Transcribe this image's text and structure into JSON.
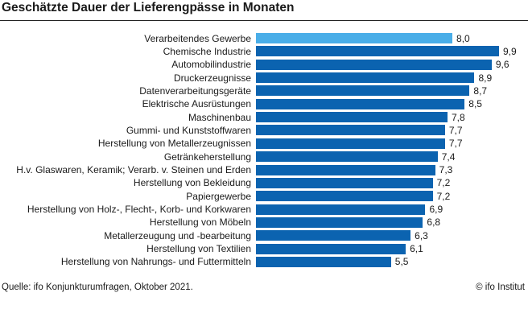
{
  "chart_data": {
    "type": "bar",
    "orientation": "horizontal",
    "title": "Geschätzte Dauer der Lieferengpässe in Monaten",
    "categories": [
      "Verarbeitendes Gewerbe",
      "Chemische Industrie",
      "Automobilindustrie",
      "Druckerzeugnisse",
      "Datenverarbeitungsgeräte",
      "Elektrische Ausrüstungen",
      "Maschinenbau",
      "Gummi- und Kunststoffwaren",
      "Herstellung von Metallerzeugnissen",
      "Getränkeherstellung",
      "H.v. Glaswaren, Keramik; Verarb. v. Steinen und Erden",
      "Herstellung von Bekleidung",
      "Papiergewerbe",
      "Herstellung von Holz-, Flecht-, Korb- und Korkwaren",
      "Herstellung von Möbeln",
      "Metallerzeugung und -bearbeitung",
      "Herstellung von Textilien",
      "Herstellung von Nahrungs- und Futtermitteln"
    ],
    "values": [
      8.0,
      9.9,
      9.6,
      8.9,
      8.7,
      8.5,
      7.8,
      7.7,
      7.7,
      7.4,
      7.3,
      7.2,
      7.2,
      6.9,
      6.8,
      6.3,
      6.1,
      5.5
    ],
    "value_labels": [
      "8,0",
      "9,9",
      "9,6",
      "8,9",
      "8,7",
      "8,5",
      "7,8",
      "7,7",
      "7,7",
      "7,4",
      "7,3",
      "7,2",
      "7,2",
      "6,9",
      "6,8",
      "6,3",
      "6,1",
      "5,5"
    ],
    "highlight_index": 0,
    "xlim": [
      0,
      9.9
    ],
    "grid": false,
    "colors": {
      "highlight": "#4aaee8",
      "bar": "#0b63b0"
    }
  },
  "footer": {
    "source": "Quelle: ifo Konjunkturumfragen, Oktober 2021.",
    "credit": "© ifo Institut"
  }
}
